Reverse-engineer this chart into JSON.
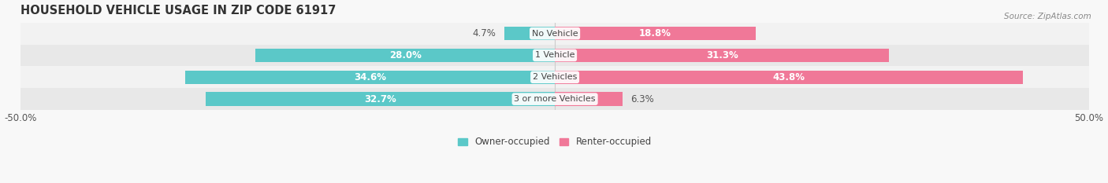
{
  "title": "HOUSEHOLD VEHICLE USAGE IN ZIP CODE 61917",
  "source": "Source: ZipAtlas.com",
  "categories": [
    "No Vehicle",
    "1 Vehicle",
    "2 Vehicles",
    "3 or more Vehicles"
  ],
  "owner_values": [
    4.7,
    28.0,
    34.6,
    32.7
  ],
  "renter_values": [
    18.8,
    31.3,
    43.8,
    6.3
  ],
  "owner_color": "#5bc8c8",
  "renter_color": "#f07898",
  "owner_color_light": "#a8e0e0",
  "renter_color_light": "#f8b8c8",
  "owner_label": "Owner-occupied",
  "renter_label": "Renter-occupied",
  "xlim": [
    -50,
    50
  ],
  "bar_height": 0.62,
  "title_fontsize": 10.5,
  "label_fontsize": 8.5,
  "category_fontsize": 8.0,
  "inside_threshold_owner": 10,
  "inside_threshold_renter": 15
}
